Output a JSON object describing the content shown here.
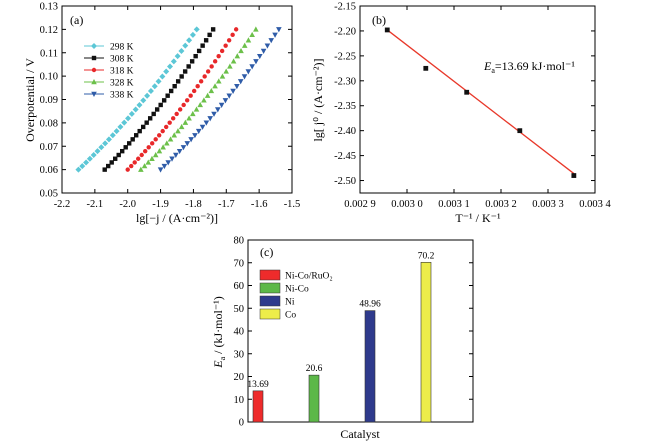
{
  "panels": {
    "a": {
      "tag": "(a)"
    },
    "b": {
      "tag": "(b)"
    },
    "c": {
      "tag": "(c)"
    }
  },
  "chart_data": [
    {
      "panel": "a",
      "type": "scatter",
      "title": "",
      "xlabel": "lg[−j / (A·cm⁻²)]",
      "ylabel": "Overpotential / V",
      "xlim": [
        -2.2,
        -1.5
      ],
      "ylim": [
        0.05,
        0.13
      ],
      "xticks": [
        "-2.2",
        "-2.1",
        "-2.0",
        "-1.9",
        "-1.8",
        "-1.7",
        "-1.6",
        "-1.5"
      ],
      "yticks": [
        "0.05",
        "0.06",
        "0.07",
        "0.08",
        "0.09",
        "0.10",
        "0.11",
        "0.12",
        "0.13"
      ],
      "legend_position": "top-left",
      "series": [
        {
          "name": "298 K",
          "marker": "diamond",
          "color": "#5cc7d6",
          "x_start": -2.15,
          "x_end": -1.79,
          "y_start": 0.06,
          "y_end": 0.12
        },
        {
          "name": "308 K",
          "marker": "square",
          "color": "#111111",
          "x_start": -2.07,
          "x_end": -1.74,
          "y_start": 0.06,
          "y_end": 0.12
        },
        {
          "name": "318 K",
          "marker": "circle",
          "color": "#e8282a",
          "x_start": -2.0,
          "x_end": -1.67,
          "y_start": 0.06,
          "y_end": 0.12
        },
        {
          "name": "328 K",
          "marker": "triangle-up",
          "color": "#6cc04a",
          "x_start": -1.96,
          "x_end": -1.61,
          "y_start": 0.06,
          "y_end": 0.12
        },
        {
          "name": "338 K",
          "marker": "triangle-down",
          "color": "#2f5ca8",
          "x_start": -1.9,
          "x_end": -1.54,
          "y_start": 0.06,
          "y_end": 0.12
        }
      ]
    },
    {
      "panel": "b",
      "type": "scatter",
      "title": "",
      "xlabel": "T⁻¹ / K⁻¹",
      "ylabel": "lg[ j⁰ / (A·cm⁻²)]",
      "xlim": [
        0.0029,
        0.0034
      ],
      "ylim": [
        -2.525,
        -2.15
      ],
      "xticks": [
        "0.002 9",
        "0.003 0",
        "0.003 1",
        "0.003 2",
        "0.003 3",
        "0.003 4"
      ],
      "yticks": [
        "-2.15",
        "-2.20",
        "-2.25",
        "-2.30",
        "-2.35",
        "-2.40",
        "-2.45",
        "-2.50"
      ],
      "annotation": {
        "main": "E",
        "sub": "a",
        "rest": "=13.69 kJ·mol⁻¹"
      },
      "points": [
        {
          "x": 0.002958,
          "y": -2.198
        },
        {
          "x": 0.00304,
          "y": -2.275
        },
        {
          "x": 0.003127,
          "y": -2.323
        },
        {
          "x": 0.00324,
          "y": -2.4
        },
        {
          "x": 0.003355,
          "y": -2.49
        }
      ],
      "fit_line": {
        "x": [
          0.002958,
          0.003355
        ],
        "y": [
          -2.198,
          -2.486
        ],
        "color": "#e8382a"
      },
      "point_color": "#111111"
    },
    {
      "panel": "c",
      "type": "bar",
      "title": "",
      "xlabel": "Catalyst",
      "ylabel": "E",
      "ylabel_sub": "a",
      "ylabel_rest": " / (kJ·mol⁻¹)",
      "ylim": [
        0,
        80
      ],
      "yticks": [
        "0",
        "10",
        "20",
        "30",
        "40",
        "50",
        "60",
        "70",
        "80"
      ],
      "legend_position": "top-left",
      "categories": [
        "Ni-Co/RuO₂",
        "Ni-Co",
        "Ni",
        "Co"
      ],
      "values": [
        13.69,
        20.6,
        48.96,
        70.2
      ],
      "value_labels": [
        "13.69",
        "20.6",
        "48.96",
        "70.2"
      ],
      "colors": [
        "#ee2b2b",
        "#5cb848",
        "#2e3a8c",
        "#eded4a"
      ]
    }
  ]
}
